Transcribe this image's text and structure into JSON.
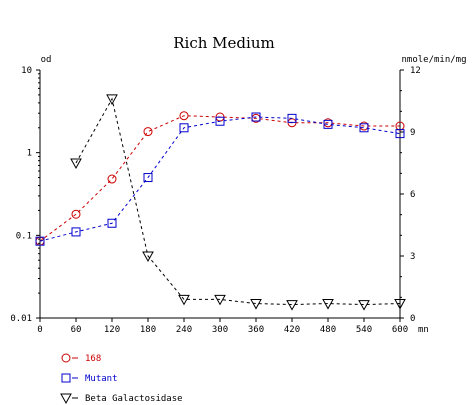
{
  "chart_data": {
    "type": "line",
    "title": "Rich Medium",
    "x_unit": "mn",
    "y_left_unit": "od",
    "y_right_unit": "nmole/min/mg",
    "x": [
      0,
      60,
      120,
      180,
      240,
      300,
      360,
      420,
      480,
      540,
      600
    ],
    "x_ticks": [
      "0",
      "60",
      "120",
      "180",
      "240",
      "300",
      "360",
      "420",
      "480",
      "540",
      "600"
    ],
    "xlim": [
      0,
      600
    ],
    "y_left_scale": "log",
    "y_left_ticks": [
      "0.01",
      "0.1",
      "1",
      "10"
    ],
    "ylim_left": [
      0.01,
      10
    ],
    "y_right_ticks": [
      "0",
      "3",
      "6",
      "9",
      "12"
    ],
    "ylim_right": [
      0,
      12
    ],
    "grid": false,
    "legend_position": "bottom-left",
    "series": [
      {
        "name": "168",
        "axis": "left",
        "marker": "circle",
        "color": "#cc0000",
        "x": [
          0,
          60,
          120,
          180,
          240,
          300,
          360,
          420,
          480,
          540,
          600
        ],
        "values": [
          0.085,
          0.18,
          0.48,
          1.8,
          2.8,
          2.7,
          2.6,
          2.3,
          2.3,
          2.1,
          2.1
        ]
      },
      {
        "name": "Mutant",
        "axis": "left",
        "marker": "square",
        "color": "#0000cc",
        "x": [
          0,
          60,
          120,
          180,
          240,
          300,
          360,
          420,
          480,
          540,
          600
        ],
        "values": [
          0.085,
          0.11,
          0.14,
          0.5,
          2.0,
          2.4,
          2.7,
          2.6,
          2.2,
          2.0,
          1.7
        ]
      },
      {
        "name": "Beta Galactosidase",
        "axis": "right",
        "marker": "triangle-down",
        "color": "#000000",
        "x": [
          60,
          120,
          180,
          240,
          300,
          360,
          420,
          480,
          540,
          600
        ],
        "values": [
          7.5,
          10.6,
          3.0,
          0.9,
          0.9,
          0.7,
          0.65,
          0.7,
          0.65,
          0.7
        ]
      }
    ]
  }
}
